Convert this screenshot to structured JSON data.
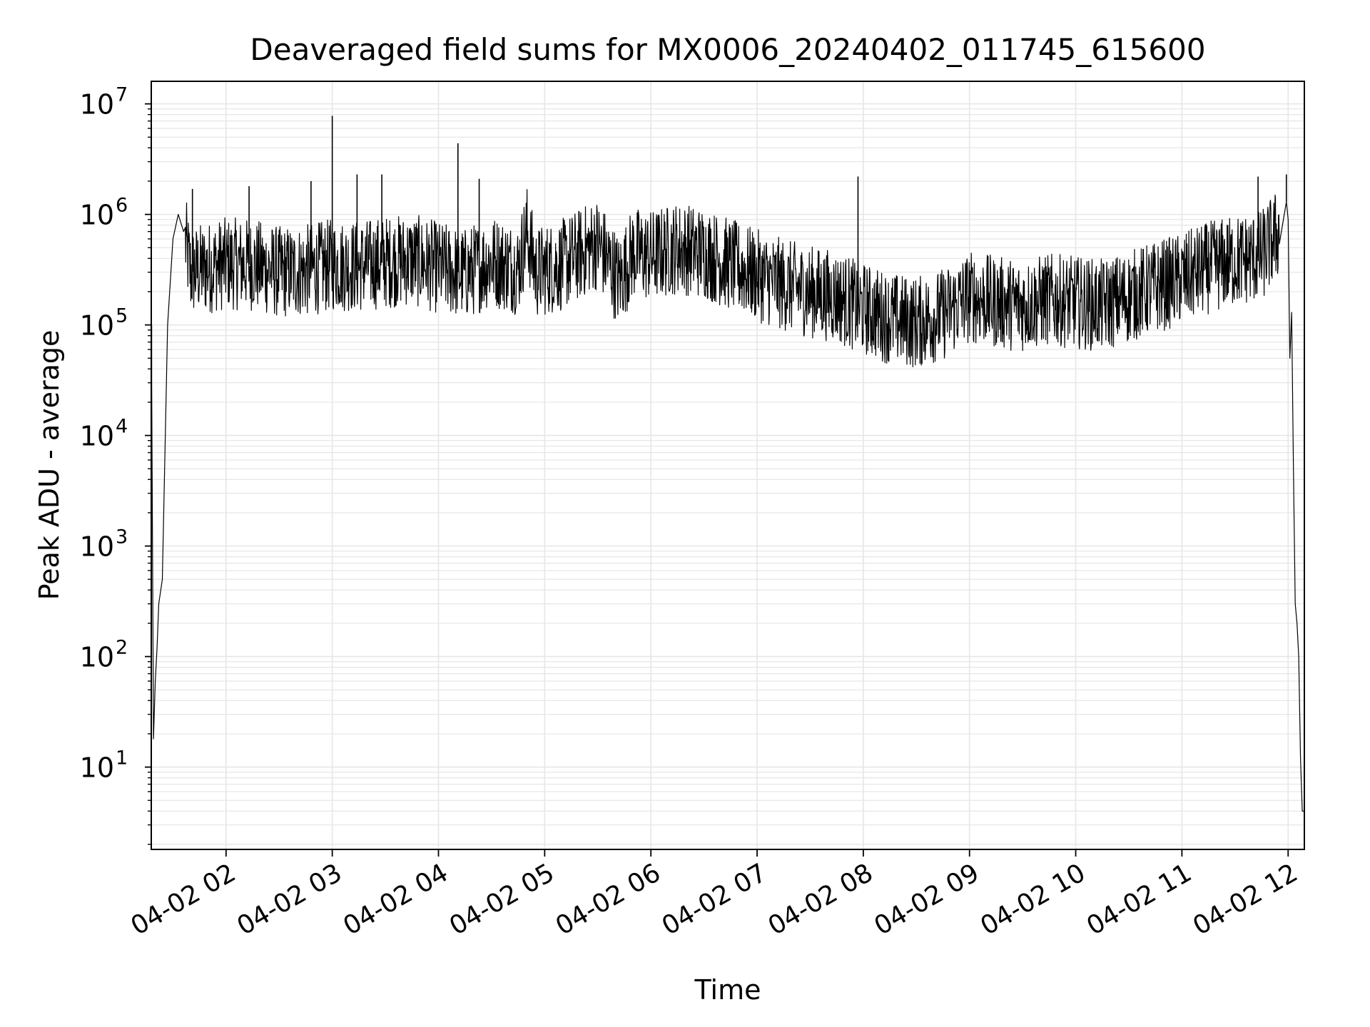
{
  "chart_data": {
    "type": "line",
    "title": "Deaveraged field sums for MX0006_20240402_011745_615600",
    "xlabel": "Time",
    "ylabel": "Peak ADU - average",
    "yscale": "log",
    "ylim": [
      1.8,
      16000000
    ],
    "xlim": [
      "2024-04-02 01:17:45",
      "2024-04-02 12:09:10"
    ],
    "x_ticks": [
      {
        "at": "2024-04-02 02:00",
        "label": "04-02 02"
      },
      {
        "at": "2024-04-02 03:00",
        "label": "04-02 03"
      },
      {
        "at": "2024-04-02 04:00",
        "label": "04-02 04"
      },
      {
        "at": "2024-04-02 05:00",
        "label": "04-02 05"
      },
      {
        "at": "2024-04-02 06:00",
        "label": "04-02 06"
      },
      {
        "at": "2024-04-02 07:00",
        "label": "04-02 07"
      },
      {
        "at": "2024-04-02 08:00",
        "label": "04-02 08"
      },
      {
        "at": "2024-04-02 09:00",
        "label": "04-02 09"
      },
      {
        "at": "2024-04-02 10:00",
        "label": "04-02 10"
      },
      {
        "at": "2024-04-02 11:00",
        "label": "04-02 11"
      },
      {
        "at": "2024-04-02 12:00",
        "label": "04-02 12"
      }
    ],
    "y_ticks": [
      {
        "value": 10,
        "base": "10",
        "exp": "1"
      },
      {
        "value": 100,
        "base": "10",
        "exp": "2"
      },
      {
        "value": 1000,
        "base": "10",
        "exp": "3"
      },
      {
        "value": 10000,
        "base": "10",
        "exp": "4"
      },
      {
        "value": 100000,
        "base": "10",
        "exp": "5"
      },
      {
        "value": 1000000,
        "base": "10",
        "exp": "6"
      },
      {
        "value": 10000000,
        "base": "10",
        "exp": "7"
      }
    ],
    "grid": true,
    "grid_minor": true,
    "line_color": "#000000",
    "grid_color": "#e6e6e6",
    "series": [
      {
        "points": [
          [
            "2024-04-02 01:18",
            100000
          ],
          [
            "2024-04-02 01:18",
            30000
          ],
          [
            "2024-04-02 01:19",
            18
          ],
          [
            "2024-04-02 01:20",
            60
          ],
          [
            "2024-04-02 01:21",
            120
          ],
          [
            "2024-04-02 01:22",
            300
          ],
          [
            "2024-04-02 01:24",
            500
          ],
          [
            "2024-04-02 01:25",
            3000
          ],
          [
            "2024-04-02 01:27",
            100000
          ],
          [
            "2024-04-02 01:30",
            600000
          ],
          [
            "2024-04-02 01:33",
            1000000
          ],
          [
            "2024-04-02 01:36",
            700000
          ],
          [
            "2024-04-02 01:40",
            300000
          ],
          [
            "2024-04-02 01:50",
            330000
          ],
          [
            "2024-04-02 02:00",
            360000
          ],
          [
            "2024-04-02 02:15",
            350000
          ],
          [
            "2024-04-02 02:30",
            300000
          ],
          [
            "2024-04-02 02:45",
            310000
          ],
          [
            "2024-04-02 03:00",
            350000
          ],
          [
            "2024-04-02 03:15",
            340000
          ],
          [
            "2024-04-02 03:30",
            370000
          ],
          [
            "2024-04-02 03:45",
            390000
          ],
          [
            "2024-04-02 04:00",
            330000
          ],
          [
            "2024-04-02 04:15",
            290000
          ],
          [
            "2024-04-02 04:30",
            380000
          ],
          [
            "2024-04-02 04:45",
            320000
          ],
          [
            "2024-04-02 04:50",
            700000
          ],
          [
            "2024-04-02 04:55",
            300000
          ],
          [
            "2024-04-02 05:10",
            350000
          ],
          [
            "2024-04-02 05:30",
            550000
          ],
          [
            "2024-04-02 05:42",
            250000
          ],
          [
            "2024-04-02 05:50",
            450000
          ],
          [
            "2024-04-02 06:00",
            420000
          ],
          [
            "2024-04-02 06:15",
            500000
          ],
          [
            "2024-04-02 06:30",
            450000
          ],
          [
            "2024-04-02 06:45",
            350000
          ],
          [
            "2024-04-02 07:00",
            280000
          ],
          [
            "2024-04-02 07:15",
            230000
          ],
          [
            "2024-04-02 07:30",
            200000
          ],
          [
            "2024-04-02 07:45",
            180000
          ],
          [
            "2024-04-02 08:00",
            140000
          ],
          [
            "2024-04-02 08:15",
            115000
          ],
          [
            "2024-04-02 08:30",
            105000
          ],
          [
            "2024-04-02 08:45",
            125000
          ],
          [
            "2024-04-02 09:00",
            180000
          ],
          [
            "2024-04-02 09:15",
            160000
          ],
          [
            "2024-04-02 09:30",
            150000
          ],
          [
            "2024-04-02 09:45",
            170000
          ],
          [
            "2024-04-02 10:00",
            160000
          ],
          [
            "2024-04-02 10:15",
            150000
          ],
          [
            "2024-04-02 10:30",
            180000
          ],
          [
            "2024-04-02 10:45",
            220000
          ],
          [
            "2024-04-02 11:00",
            260000
          ],
          [
            "2024-04-02 11:15",
            330000
          ],
          [
            "2024-04-02 11:30",
            380000
          ],
          [
            "2024-04-02 11:45",
            420000
          ],
          [
            "2024-04-02 11:55",
            700000
          ],
          [
            "2024-04-02 11:59",
            1300000
          ],
          [
            "2024-04-02 12:00",
            900000
          ],
          [
            "2024-04-02 12:01",
            50000
          ],
          [
            "2024-04-02 12:02",
            130000
          ],
          [
            "2024-04-02 12:03",
            5000
          ],
          [
            "2024-04-02 12:04",
            300
          ],
          [
            "2024-04-02 12:05",
            200
          ],
          [
            "2024-04-02 12:06",
            100
          ],
          [
            "2024-04-02 12:07",
            12
          ],
          [
            "2024-04-02 12:08",
            4
          ],
          [
            "2024-04-02 12:09",
            4
          ]
        ]
      }
    ],
    "spikes": [
      [
        "2024-04-02 01:41",
        1700000
      ],
      [
        "2024-04-02 02:13",
        1800000
      ],
      [
        "2024-04-02 02:48",
        2000000
      ],
      [
        "2024-04-02 03:00",
        7800000
      ],
      [
        "2024-04-02 03:14",
        2300000
      ],
      [
        "2024-04-02 03:28",
        2300000
      ],
      [
        "2024-04-02 04:11",
        4400000
      ],
      [
        "2024-04-02 04:23",
        2100000
      ],
      [
        "2024-04-02 07:57",
        2200000
      ],
      [
        "2024-04-02 11:43",
        2200000
      ],
      [
        "2024-04-02 11:59",
        2300000
      ]
    ]
  }
}
